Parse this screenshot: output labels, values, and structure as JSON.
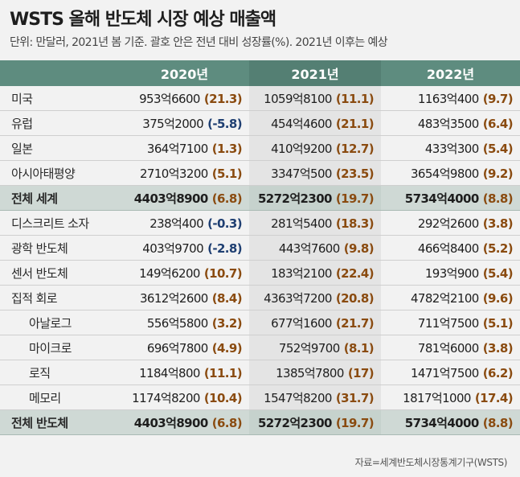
{
  "title": "WSTS 올해 반도체 시장 예상 매출액",
  "subtitle": "단위: 만달러, 2021년 봄 기준. 괄호 안은 전년 대비 성장률(%). 2021년 이후는 예상",
  "source": "자료=세계반도체시장통계기구(WSTS)",
  "colors": {
    "header_bg": "#5e8c7f",
    "total_row_bg": "#cfd9d5",
    "positive_growth": "#8a4b10",
    "negative_growth": "#1f3f72"
  },
  "chart_data": {
    "type": "table",
    "columns": [
      "2020년",
      "2021년",
      "2022년"
    ],
    "rows": [
      {
        "label": "미국",
        "cells": [
          {
            "value": "953억6600",
            "growth": "(21.3)"
          },
          {
            "value": "1059억8100",
            "growth": "(11.1)"
          },
          {
            "value": "1163억400",
            "growth": "(9.7)"
          }
        ]
      },
      {
        "label": "유럽",
        "cells": [
          {
            "value": "375억2000",
            "growth": "(-5.8)"
          },
          {
            "value": "454억4600",
            "growth": "(21.1)"
          },
          {
            "value": "483억3500",
            "growth": "(6.4)"
          }
        ]
      },
      {
        "label": "일본",
        "cells": [
          {
            "value": "364억7100",
            "growth": "(1.3)"
          },
          {
            "value": "410억9200",
            "growth": "(12.7)"
          },
          {
            "value": "433억300",
            "growth": "(5.4)"
          }
        ]
      },
      {
        "label": "아시아태평양",
        "cells": [
          {
            "value": "2710억3200",
            "growth": "(5.1)"
          },
          {
            "value": "3347억500",
            "growth": "(23.5)"
          },
          {
            "value": "3654억9800",
            "growth": "(9.2)"
          }
        ]
      },
      {
        "label": "전체 세계",
        "total": true,
        "cells": [
          {
            "value": "4403억8900",
            "growth": "(6.8)"
          },
          {
            "value": "5272억2300",
            "growth": "(19.7)"
          },
          {
            "value": "5734억4000",
            "growth": "(8.8)"
          }
        ]
      },
      {
        "label": "디스크리트 소자",
        "cells": [
          {
            "value": "238억400",
            "growth": "(-0.3)"
          },
          {
            "value": "281억5400",
            "growth": "(18.3)"
          },
          {
            "value": "292억2600",
            "growth": "(3.8)"
          }
        ]
      },
      {
        "label": "광학 반도체",
        "cells": [
          {
            "value": "403억9700",
            "growth": "(-2.8)"
          },
          {
            "value": "443억7600",
            "growth": "(9.8)"
          },
          {
            "value": "466억8400",
            "growth": "(5.2)"
          }
        ]
      },
      {
        "label": "센서 반도체",
        "cells": [
          {
            "value": "149억6200",
            "growth": "(10.7)"
          },
          {
            "value": "183억2100",
            "growth": "(22.4)"
          },
          {
            "value": "193억900",
            "growth": "(5.4)"
          }
        ]
      },
      {
        "label": "집적 회로",
        "cells": [
          {
            "value": "3612억2600",
            "growth": "(8.4)"
          },
          {
            "value": "4363억7200",
            "growth": "(20.8)"
          },
          {
            "value": "4782억2100",
            "growth": "(9.6)"
          }
        ]
      },
      {
        "label": "아날로그",
        "indent": true,
        "cells": [
          {
            "value": "556억5800",
            "growth": "(3.2)"
          },
          {
            "value": "677억1600",
            "growth": "(21.7)"
          },
          {
            "value": "711억7500",
            "growth": "(5.1)"
          }
        ]
      },
      {
        "label": "마이크로",
        "indent": true,
        "cells": [
          {
            "value": "696억7800",
            "growth": "(4.9)"
          },
          {
            "value": "752억9700",
            "growth": "(8.1)"
          },
          {
            "value": "781억6000",
            "growth": "(3.8)"
          }
        ]
      },
      {
        "label": "로직",
        "indent": true,
        "cells": [
          {
            "value": "1184억800",
            "growth": "(11.1)"
          },
          {
            "value": "1385억7800",
            "growth": "(17)"
          },
          {
            "value": "1471억7500",
            "growth": "(6.2)"
          }
        ]
      },
      {
        "label": "메모리",
        "indent": true,
        "cells": [
          {
            "value": "1174억8200",
            "growth": "(10.4)"
          },
          {
            "value": "1547억8200",
            "growth": "(31.7)"
          },
          {
            "value": "1817억1000",
            "growth": "(17.4)"
          }
        ]
      },
      {
        "label": "전체 반도체",
        "total": true,
        "cells": [
          {
            "value": "4403억8900",
            "growth": "(6.8)"
          },
          {
            "value": "5272억2300",
            "growth": "(19.7)"
          },
          {
            "value": "5734억4000",
            "growth": "(8.8)"
          }
        ]
      }
    ]
  }
}
